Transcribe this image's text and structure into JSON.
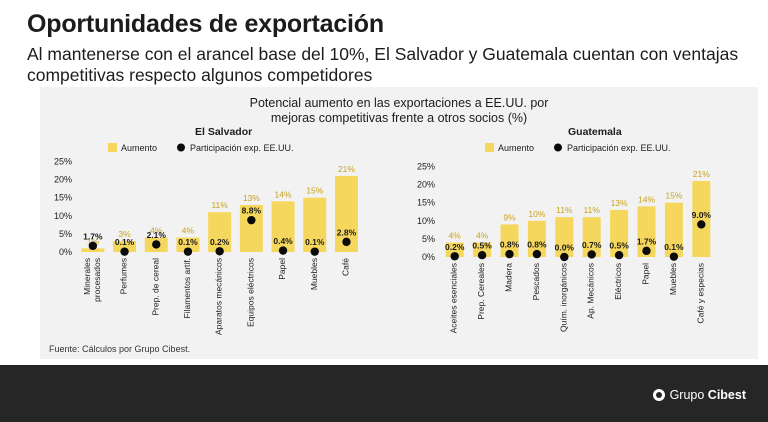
{
  "page": {
    "title": "Oportunidades de exportación",
    "subtitle": "Al mantenerse con el arancel base del 10%, El Salvador y Guatemala cuentan con ventajas competitivas respecto algunos competidores",
    "chart_title_line1": "Potencial aumento en las exportaciones a EE.UU. por",
    "chart_title_line2": "mejoras competitivas frente a otros socios (%)",
    "source": "Fuente: Cálculos por Grupo Cibest.",
    "brand_prefix": "Grupo",
    "brand_bold": "Cibest"
  },
  "colors": {
    "bar": "#f5d75e",
    "bar_label": "#c9a21b",
    "dot": "#0a0a0a",
    "footer": "#262626"
  },
  "chart_data": [
    {
      "type": "bar",
      "title": "El Salvador",
      "categories": [
        "Minerales procesados",
        "Perfumes",
        "Prep. de cereal",
        "Filamentos artif.",
        "Aparatos mecánicos",
        "Equipos eléctricos",
        "Papel",
        "Muebles",
        "Café"
      ],
      "category_lines": [
        [
          "Minerales",
          "procesados"
        ],
        [
          "Perfumes"
        ],
        [
          "Prep. de cereal"
        ],
        [
          "Filamentos artif."
        ],
        [
          "Aparatos mecánicos"
        ],
        [
          "Equipos eléctricos"
        ],
        [
          "Papel"
        ],
        [
          "Muebles"
        ],
        [
          "Café"
        ]
      ],
      "series": [
        {
          "name": "Aumento",
          "kind": "bar",
          "values": [
            1,
            3,
            4,
            4,
            11,
            13,
            14,
            15,
            21
          ],
          "labels": [
            "1%",
            "3%",
            "4%",
            "4%",
            "11%",
            "13%",
            "14%",
            "15%",
            "21%"
          ]
        },
        {
          "name": "Participación exp. EE.UU.",
          "kind": "dot",
          "values": [
            1.7,
            0.1,
            2.1,
            0.1,
            0.2,
            8.8,
            0.4,
            0.1,
            2.8
          ],
          "labels": [
            "1.7%",
            "0.1%",
            "2.1%",
            "0.1%",
            "0.2%",
            "8.8%",
            "0.4%",
            "0.1%",
            "2.8%"
          ]
        }
      ],
      "yticks": [
        "0%",
        "5%",
        "10%",
        "15%",
        "20%",
        "25%"
      ],
      "ylim": [
        0,
        25
      ]
    },
    {
      "type": "bar",
      "title": "Guatemala",
      "categories": [
        "Aceites esenciales",
        "Prep. Cereales",
        "Madera",
        "Pescados",
        "Quím. inorgánicos",
        "Ap. Mecánicos",
        "Eléctricos",
        "Papel",
        "Muebles",
        "Café y especias"
      ],
      "category_lines": [
        [
          "Aceites esenciales"
        ],
        [
          "Prep. Cereales"
        ],
        [
          "Madera"
        ],
        [
          "Pescados"
        ],
        [
          "Quím. inorgánicos"
        ],
        [
          "Ap. Mecánicos"
        ],
        [
          "Eléctricos"
        ],
        [
          "Papel"
        ],
        [
          "Muebles"
        ],
        [
          "Café y especias"
        ]
      ],
      "series": [
        {
          "name": "Aumento",
          "kind": "bar",
          "values": [
            4,
            4,
            9,
            10,
            11,
            11,
            13,
            14,
            15,
            21
          ],
          "labels": [
            "4%",
            "4%",
            "9%",
            "10%",
            "11%",
            "11%",
            "13%",
            "14%",
            "15%",
            "21%"
          ]
        },
        {
          "name": "Participación exp. EE.UU.",
          "kind": "dot",
          "values": [
            0.2,
            0.5,
            0.8,
            0.8,
            0.0,
            0.7,
            0.5,
            1.7,
            0.1,
            9.0
          ],
          "labels": [
            "0.2%",
            "0.5%",
            "0.8%",
            "0.8%",
            "0.0%",
            "0.7%",
            "0.5%",
            "1.7%",
            "0.1%",
            "9.0%"
          ]
        }
      ],
      "yticks": [
        "0%",
        "5%",
        "10%",
        "15%",
        "20%",
        "25%"
      ],
      "ylim": [
        0,
        25
      ]
    }
  ]
}
